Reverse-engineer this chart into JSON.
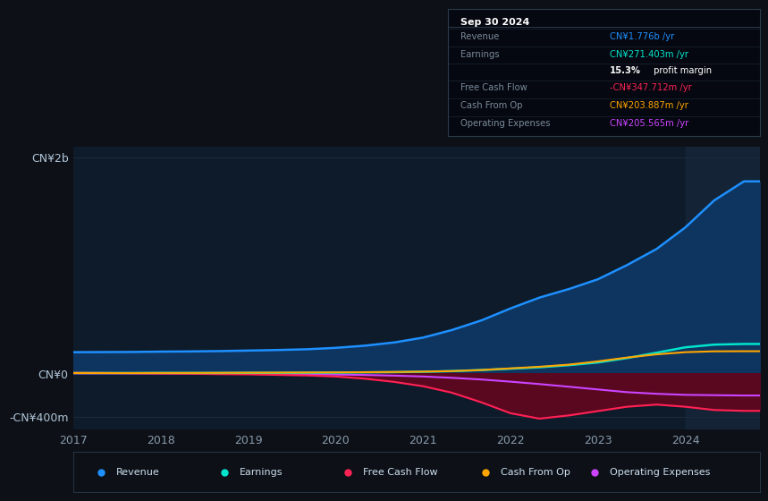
{
  "bg_color": "#0d1117",
  "plot_bg_color": "#0d1b2a",
  "title_box_bg": "#050810",
  "years": [
    2017.0,
    2017.33,
    2017.67,
    2018.0,
    2018.33,
    2018.67,
    2019.0,
    2019.33,
    2019.67,
    2020.0,
    2020.33,
    2020.67,
    2021.0,
    2021.33,
    2021.67,
    2022.0,
    2022.33,
    2022.67,
    2023.0,
    2023.33,
    2023.67,
    2024.0,
    2024.33,
    2024.67,
    2024.85
  ],
  "revenue": [
    195,
    196,
    197,
    200,
    202,
    205,
    210,
    215,
    222,
    235,
    255,
    285,
    330,
    400,
    490,
    600,
    700,
    780,
    870,
    1000,
    1150,
    1350,
    1600,
    1776,
    1776
  ],
  "earnings": [
    2,
    2,
    2,
    3,
    3,
    3,
    4,
    4,
    5,
    6,
    8,
    10,
    14,
    20,
    30,
    42,
    55,
    75,
    100,
    140,
    190,
    240,
    265,
    271,
    271
  ],
  "free_cash_flow": [
    5,
    3,
    0,
    -3,
    -5,
    -8,
    -10,
    -15,
    -20,
    -30,
    -50,
    -80,
    -120,
    -180,
    -270,
    -370,
    -420,
    -390,
    -350,
    -310,
    -290,
    -310,
    -340,
    -348,
    -348
  ],
  "cash_from_op": [
    2,
    2,
    2,
    3,
    3,
    4,
    5,
    6,
    7,
    8,
    10,
    12,
    15,
    20,
    30,
    45,
    60,
    80,
    110,
    145,
    175,
    195,
    203,
    204,
    204
  ],
  "operating_expenses": [
    -1,
    -1,
    -2,
    -2,
    -3,
    -4,
    -5,
    -7,
    -9,
    -12,
    -16,
    -22,
    -30,
    -42,
    -58,
    -78,
    -100,
    -125,
    -150,
    -175,
    -190,
    -200,
    -203,
    -206,
    -206
  ],
  "revenue_color": "#1e90ff",
  "earnings_color": "#00e5cc",
  "fcf_color": "#ff2255",
  "cash_op_color": "#ffa500",
  "opex_color": "#cc44ff",
  "revenue_fill": "#0e3560",
  "fcf_fill": "#5a0820",
  "opex_fill": "#3d1055",
  "ylim_min": -520,
  "ylim_max": 2100,
  "y_ticks_labels": [
    "CN¥2b",
    "CN¥0",
    "-CN¥400m"
  ],
  "y_ticks_vals": [
    2000,
    0,
    -400
  ],
  "x_ticks": [
    2017,
    2018,
    2019,
    2020,
    2021,
    2022,
    2023,
    2024
  ],
  "highlight_start": 2024.0,
  "legend_items": [
    {
      "label": "Revenue",
      "color": "#1e90ff"
    },
    {
      "label": "Earnings",
      "color": "#00e5cc"
    },
    {
      "label": "Free Cash Flow",
      "color": "#ff2255"
    },
    {
      "label": "Cash From Op",
      "color": "#ffa500"
    },
    {
      "label": "Operating Expenses",
      "color": "#cc44ff"
    }
  ],
  "info_box": {
    "date": "Sep 30 2024",
    "rows": [
      {
        "label": "Revenue",
        "value": "CN¥1.776b /yr",
        "value_color": "#1e90ff",
        "bold_prefix": ""
      },
      {
        "label": "Earnings",
        "value": "CN¥271.403m /yr",
        "value_color": "#00e5cc",
        "bold_prefix": ""
      },
      {
        "label": "",
        "value": "15.3% profit margin",
        "value_color": "#ffffff",
        "bold_prefix": "15.3%"
      },
      {
        "label": "Free Cash Flow",
        "value": "-CN¥347.712m /yr",
        "value_color": "#ff2255",
        "bold_prefix": ""
      },
      {
        "label": "Cash From Op",
        "value": "CN¥203.887m /yr",
        "value_color": "#ffa500",
        "bold_prefix": ""
      },
      {
        "label": "Operating Expenses",
        "value": "CN¥205.565m /yr",
        "value_color": "#cc44ff",
        "bold_prefix": ""
      }
    ]
  }
}
